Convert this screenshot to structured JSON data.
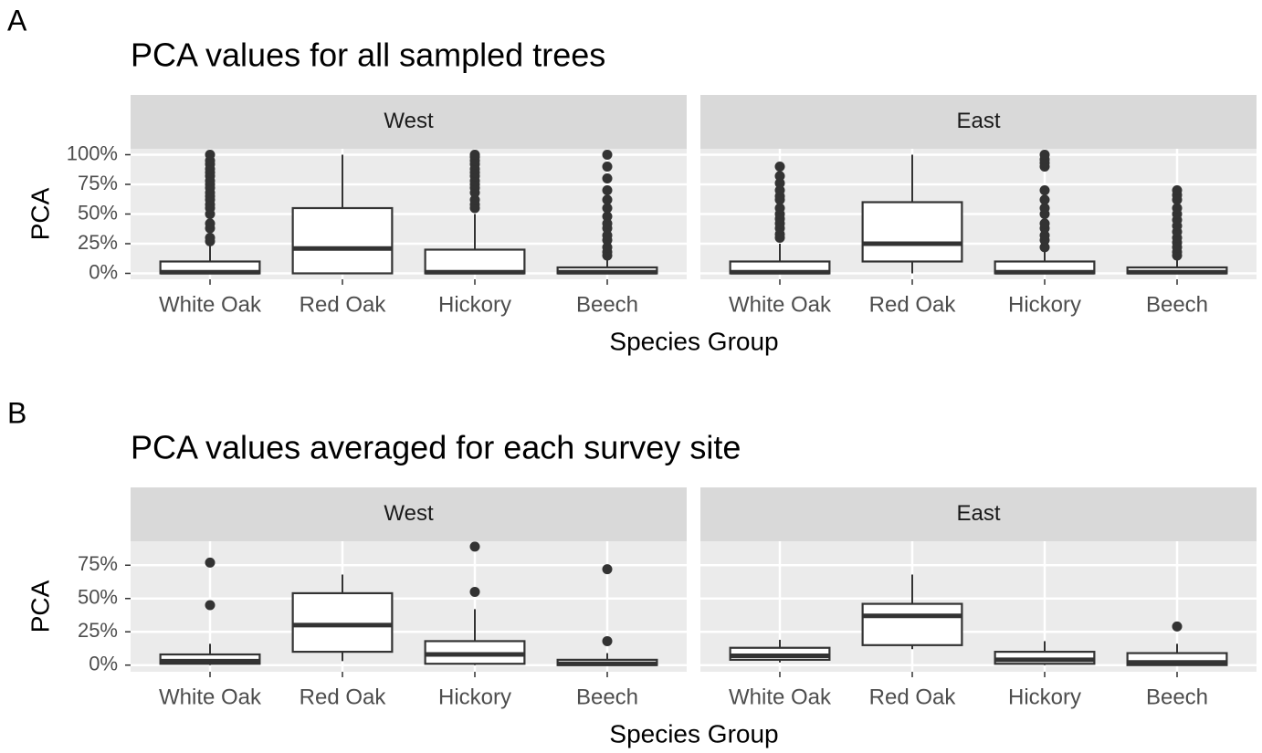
{
  "chart_data": [
    {
      "type": "box",
      "tag": "A",
      "title": "PCA values for all sampled trees",
      "xlabel": "Species Group",
      "ylabel": "PCA",
      "categories": [
        "White Oak",
        "Red Oak",
        "Hickory",
        "Beech"
      ],
      "ylim": [
        -5,
        105
      ],
      "yticks": [
        {
          "value": 0,
          "label": "0%"
        },
        {
          "value": 25,
          "label": "25%"
        },
        {
          "value": 50,
          "label": "50%"
        },
        {
          "value": 75,
          "label": "75%"
        },
        {
          "value": 100,
          "label": "100%"
        }
      ],
      "facets": [
        {
          "name": "West",
          "boxes": [
            {
              "min": 0,
              "q1": 0,
              "median": 1,
              "q3": 10,
              "max": 25,
              "outliers": [
                27,
                30,
                38,
                42,
                50,
                55,
                58,
                62,
                65,
                68,
                72,
                75,
                78,
                82,
                85,
                88,
                92,
                95,
                100
              ]
            },
            {
              "min": 0,
              "q1": 0,
              "median": 21,
              "q3": 55,
              "max": 100,
              "outliers": []
            },
            {
              "min": 0,
              "q1": 0,
              "median": 1,
              "q3": 20,
              "max": 50,
              "outliers": [
                55,
                58,
                62,
                68,
                72,
                75,
                78,
                82,
                85,
                88,
                92,
                95,
                98,
                100
              ]
            },
            {
              "min": 0,
              "q1": 0,
              "median": 1,
              "q3": 5,
              "max": 12,
              "outliers": [
                15,
                18,
                22,
                28,
                32,
                38,
                42,
                48,
                55,
                62,
                70,
                80,
                90,
                100
              ]
            }
          ]
        },
        {
          "name": "East",
          "boxes": [
            {
              "min": 0,
              "q1": 0,
              "median": 1,
              "q3": 10,
              "max": 25,
              "outliers": [
                30,
                33,
                38,
                42,
                46,
                50,
                55,
                62,
                65,
                70,
                76,
                82,
                90
              ]
            },
            {
              "min": 0,
              "q1": 10,
              "median": 25,
              "q3": 60,
              "max": 100,
              "outliers": []
            },
            {
              "min": 0,
              "q1": 0,
              "median": 1,
              "q3": 10,
              "max": 20,
              "outliers": [
                22,
                28,
                32,
                38,
                42,
                50,
                55,
                62,
                70,
                90,
                93,
                96,
                100
              ]
            },
            {
              "min": 0,
              "q1": 0,
              "median": 1,
              "q3": 5,
              "max": 12,
              "outliers": [
                15,
                18,
                22,
                26,
                30,
                35,
                40,
                45,
                50,
                55,
                62,
                66,
                70
              ]
            }
          ]
        }
      ]
    },
    {
      "type": "box",
      "tag": "B",
      "title": "PCA values averaged for each survey site",
      "xlabel": "Species Group",
      "ylabel": "PCA",
      "categories": [
        "White Oak",
        "Red Oak",
        "Hickory",
        "Beech"
      ],
      "ylim": [
        -5,
        93
      ],
      "yticks": [
        {
          "value": 0,
          "label": "0%"
        },
        {
          "value": 25,
          "label": "25%"
        },
        {
          "value": 50,
          "label": "50%"
        },
        {
          "value": 75,
          "label": "75%"
        }
      ],
      "facets": [
        {
          "name": "West",
          "boxes": [
            {
              "min": 0,
              "q1": 1,
              "median": 3,
              "q3": 8,
              "max": 16,
              "outliers": [
                45,
                77
              ]
            },
            {
              "min": 3,
              "q1": 10,
              "median": 30,
              "q3": 54,
              "max": 68,
              "outliers": []
            },
            {
              "min": 0,
              "q1": 1,
              "median": 8,
              "q3": 18,
              "max": 42,
              "outliers": [
                55,
                89
              ]
            },
            {
              "min": 0,
              "q1": 0,
              "median": 1,
              "q3": 4,
              "max": 9,
              "outliers": [
                18,
                72
              ]
            }
          ]
        },
        {
          "name": "East",
          "boxes": [
            {
              "min": 2,
              "q1": 4,
              "median": 7,
              "q3": 13,
              "max": 19,
              "outliers": []
            },
            {
              "min": 12,
              "q1": 15,
              "median": 37,
              "q3": 46,
              "max": 68,
              "outliers": []
            },
            {
              "min": 0,
              "q1": 1,
              "median": 4,
              "q3": 10,
              "max": 18,
              "outliers": []
            },
            {
              "min": 0,
              "q1": 0,
              "median": 2,
              "q3": 9,
              "max": 16,
              "outliers": [
                29
              ]
            }
          ]
        }
      ]
    }
  ]
}
